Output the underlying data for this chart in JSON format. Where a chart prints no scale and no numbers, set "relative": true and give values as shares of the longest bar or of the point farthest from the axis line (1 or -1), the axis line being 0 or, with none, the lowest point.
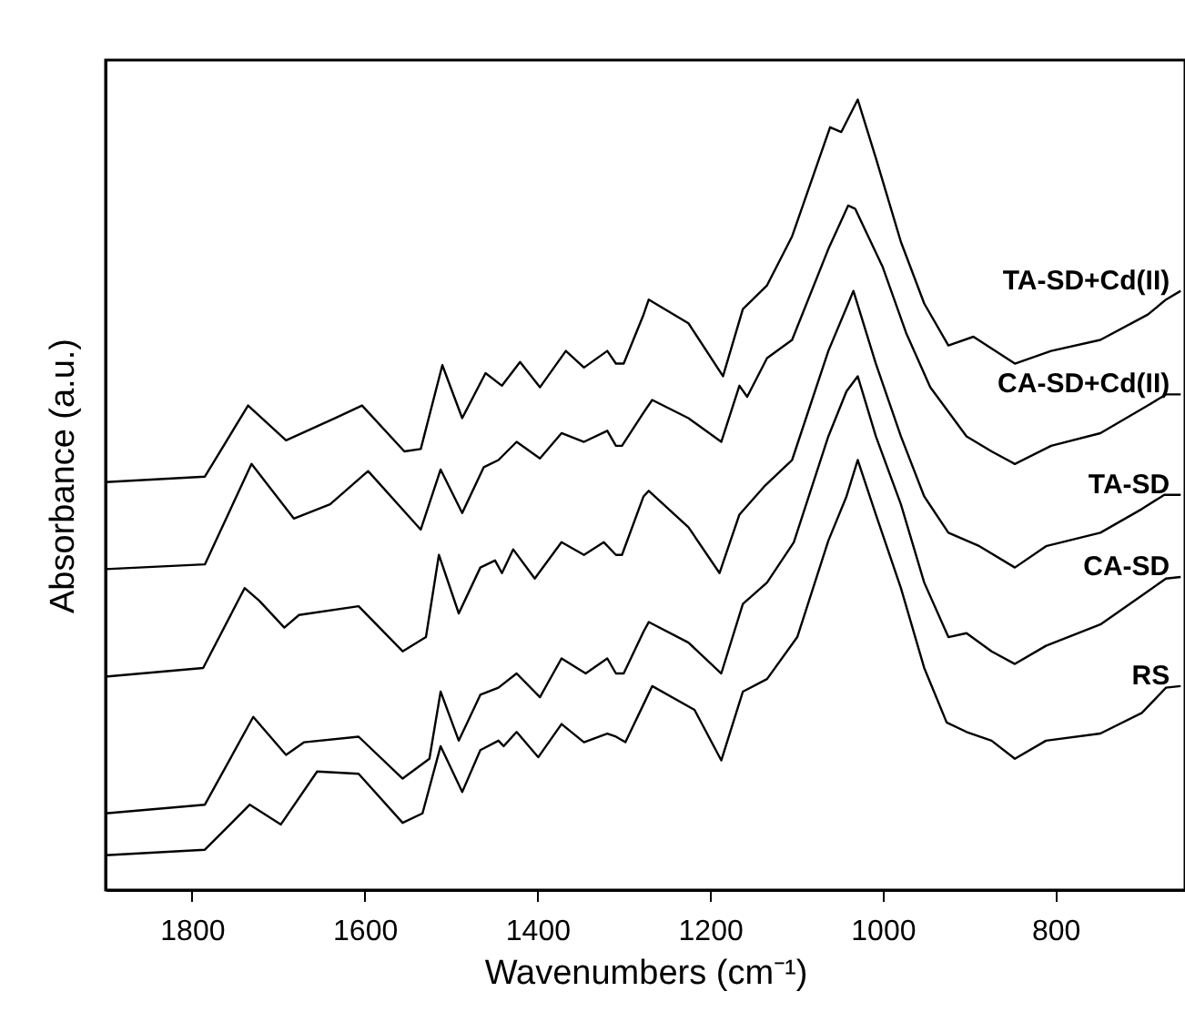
{
  "chart_data": {
    "type": "line",
    "xlabel": "Wavenumbers (cm⁻¹)",
    "ylabel": "Absorbance (a.u.)",
    "relative": true,
    "xlim": [
      1900,
      650
    ],
    "xticks": [
      1800,
      1600,
      1400,
      1200,
      1000,
      800
    ],
    "grid": false,
    "legend": false,
    "series": [
      {
        "name": "RS",
        "color": "#000000",
        "x": [
          1900,
          1785,
          1733,
          1697,
          1655,
          1607,
          1556,
          1533,
          1512,
          1487,
          1466,
          1445,
          1439,
          1424,
          1399,
          1372,
          1346,
          1319,
          1309,
          1298,
          1277,
          1267,
          1218,
          1187,
          1162,
          1134,
          1099,
          1063,
          1042,
          1029,
          1008,
          979,
          952,
          926,
          903,
          874,
          847,
          811,
          748,
          700,
          672,
          655
        ],
        "values": [
          0.044,
          0.051,
          0.108,
          0.083,
          0.15,
          0.147,
          0.085,
          0.097,
          0.182,
          0.124,
          0.177,
          0.189,
          0.182,
          0.2,
          0.168,
          0.21,
          0.187,
          0.198,
          0.194,
          0.187,
          0.235,
          0.258,
          0.228,
          0.164,
          0.251,
          0.267,
          0.32,
          0.442,
          0.498,
          0.544,
          0.475,
          0.382,
          0.281,
          0.212,
          0.2,
          0.189,
          0.166,
          0.189,
          0.198,
          0.224,
          0.256,
          0.258
        ]
      },
      {
        "name": "CA-SD",
        "color": "#000000",
        "x": [
          1900,
          1785,
          1729,
          1691,
          1670,
          1607,
          1556,
          1525,
          1512,
          1491,
          1466,
          1445,
          1424,
          1397,
          1372,
          1344,
          1319,
          1309,
          1300,
          1277,
          1271,
          1225,
          1187,
          1162,
          1134,
          1103,
          1063,
          1042,
          1029,
          1008,
          979,
          952,
          924,
          903,
          874,
          847,
          811,
          748,
          693,
          672,
          655
        ],
        "values": [
          0.097,
          0.108,
          0.219,
          0.171,
          0.187,
          0.194,
          0.141,
          0.166,
          0.251,
          0.189,
          0.247,
          0.256,
          0.274,
          0.244,
          0.293,
          0.274,
          0.293,
          0.274,
          0.274,
          0.327,
          0.339,
          0.313,
          0.274,
          0.362,
          0.389,
          0.44,
          0.574,
          0.631,
          0.65,
          0.574,
          0.488,
          0.389,
          0.32,
          0.325,
          0.302,
          0.286,
          0.309,
          0.336,
          0.378,
          0.394,
          0.396
        ]
      },
      {
        "name": "TA-SD",
        "color": "#000000",
        "x": [
          1900,
          1787,
          1739,
          1722,
          1693,
          1676,
          1607,
          1556,
          1529,
          1514,
          1491,
          1466,
          1449,
          1441,
          1428,
          1403,
          1372,
          1346,
          1323,
          1309,
          1302,
          1277,
          1271,
          1225,
          1189,
          1166,
          1136,
          1105,
          1063,
          1040,
          1034,
          1008,
          979,
          952,
          924,
          888,
          847,
          811,
          748,
          700,
          674,
          655
        ],
        "values": [
          0.27,
          0.281,
          0.382,
          0.366,
          0.332,
          0.348,
          0.359,
          0.302,
          0.32,
          0.424,
          0.35,
          0.408,
          0.417,
          0.401,
          0.431,
          0.394,
          0.44,
          0.424,
          0.44,
          0.424,
          0.424,
          0.498,
          0.505,
          0.459,
          0.401,
          0.475,
          0.512,
          0.544,
          0.682,
          0.742,
          0.758,
          0.666,
          0.574,
          0.498,
          0.452,
          0.435,
          0.408,
          0.435,
          0.452,
          0.482,
          0.5,
          0.5
        ]
      },
      {
        "name": "CA-SD+Cd(II)",
        "color": "#000000",
        "x": [
          1900,
          1785,
          1731,
          1682,
          1640,
          1596,
          1535,
          1512,
          1487,
          1462,
          1445,
          1424,
          1397,
          1372,
          1346,
          1319,
          1309,
          1302,
          1277,
          1267,
          1225,
          1187,
          1166,
          1157,
          1134,
          1105,
          1063,
          1040,
          1032,
          1000,
          973,
          945,
          903,
          874,
          847,
          805,
          748,
          693,
          672,
          655
        ],
        "values": [
          0.406,
          0.412,
          0.539,
          0.47,
          0.488,
          0.53,
          0.456,
          0.532,
          0.477,
          0.535,
          0.544,
          0.567,
          0.546,
          0.578,
          0.567,
          0.581,
          0.562,
          0.562,
          0.604,
          0.62,
          0.597,
          0.567,
          0.638,
          0.624,
          0.673,
          0.696,
          0.811,
          0.866,
          0.862,
          0.788,
          0.705,
          0.636,
          0.574,
          0.555,
          0.539,
          0.562,
          0.578,
          0.613,
          0.627,
          0.627
        ]
      },
      {
        "name": "TA-SD+Cd(II)",
        "color": "#000000",
        "x": [
          1900,
          1785,
          1735,
          1691,
          1634,
          1603,
          1554,
          1535,
          1510,
          1487,
          1460,
          1441,
          1420,
          1397,
          1367,
          1346,
          1319,
          1309,
          1300,
          1277,
          1271,
          1225,
          1185,
          1162,
          1134,
          1105,
          1061,
          1048,
          1029,
          1008,
          979,
          952,
          924,
          895,
          847,
          805,
          748,
          693,
          672,
          655
        ],
        "values": [
          0.516,
          0.523,
          0.613,
          0.569,
          0.597,
          0.613,
          0.555,
          0.558,
          0.664,
          0.597,
          0.654,
          0.638,
          0.668,
          0.636,
          0.682,
          0.661,
          0.682,
          0.666,
          0.666,
          0.728,
          0.747,
          0.717,
          0.65,
          0.735,
          0.765,
          0.827,
          0.965,
          0.959,
          1,
          0.926,
          0.82,
          0.742,
          0.689,
          0.7,
          0.666,
          0.682,
          0.696,
          0.728,
          0.747,
          0.758
        ]
      }
    ]
  }
}
